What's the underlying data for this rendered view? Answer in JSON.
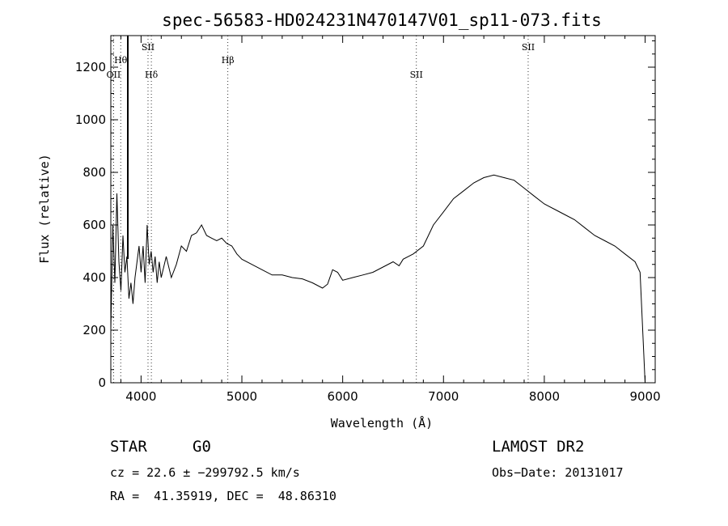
{
  "chart_data": {
    "type": "line",
    "title": "spec-56583-HD024231N470147V01_sp11-073.fits",
    "xlabel": "Wavelength (Å)",
    "ylabel": "Flux (relative)",
    "xlim": [
      3700,
      9100
    ],
    "ylim": [
      0,
      1320
    ],
    "xticks": [
      4000,
      5000,
      6000,
      7000,
      8000,
      9000
    ],
    "yticks": [
      0,
      200,
      400,
      600,
      800,
      1000,
      1200
    ],
    "grid": false,
    "lines": [
      {
        "label": "OII",
        "wavelength": 3727
      },
      {
        "label": "Hθ",
        "wavelength": 3798
      },
      {
        "label": "SII",
        "wavelength": 4069
      },
      {
        "label": "Hδ",
        "wavelength": 4102
      },
      {
        "label": "Hβ",
        "wavelength": 4861
      },
      {
        "label": "SII",
        "wavelength": 6731
      },
      {
        "label": "SII",
        "wavelength": 7840
      }
    ],
    "series": [
      {
        "x": [
          3700,
          3720,
          3740,
          3760,
          3780,
          3800,
          3820,
          3840,
          3860,
          3880,
          3900,
          3920,
          3940,
          3960,
          3980,
          4000,
          4020,
          4040,
          4060,
          4080,
          4100,
          4120,
          4140,
          4160,
          4180,
          4200,
          4250,
          4300,
          4350,
          4400,
          4450,
          4500,
          4550,
          4600,
          4650,
          4700,
          4750,
          4800,
          4850,
          4900,
          4950,
          5000,
          5100,
          5200,
          5300,
          5400,
          5500,
          5600,
          5700,
          5800,
          5850,
          5900,
          5950,
          6000,
          6100,
          6200,
          6300,
          6400,
          6500,
          6560,
          6600,
          6700,
          6800,
          6900,
          7000,
          7100,
          7200,
          7300,
          7400,
          7500,
          7600,
          7700,
          7800,
          7900,
          8000,
          8100,
          8200,
          8300,
          8400,
          8500,
          8600,
          8700,
          8800,
          8900,
          8950,
          9000
        ],
        "y": [
          200,
          600,
          380,
          720,
          460,
          350,
          560,
          420,
          480,
          320,
          380,
          300,
          400,
          460,
          520,
          420,
          520,
          380,
          600,
          450,
          500,
          420,
          480,
          380,
          460,
          400,
          480,
          400,
          450,
          520,
          500,
          560,
          570,
          600,
          560,
          550,
          540,
          550,
          530,
          520,
          490,
          470,
          450,
          430,
          410,
          410,
          400,
          395,
          380,
          360,
          375,
          430,
          420,
          390,
          400,
          410,
          420,
          440,
          460,
          445,
          470,
          490,
          520,
          600,
          650,
          700,
          730,
          760,
          780,
          790,
          780,
          770,
          740,
          710,
          680,
          660,
          640,
          620,
          590,
          560,
          540,
          520,
          490,
          460,
          420,
          0
        ]
      }
    ]
  },
  "info": {
    "object_type": "STAR",
    "subclass": "G0",
    "survey": "LAMOST DR2",
    "cz": "cz = 22.6 ± −299792.5 km/s",
    "obs_date": "Obs−Date: 20131017",
    "coords": "RA =  41.35919, DEC =  48.86310"
  }
}
